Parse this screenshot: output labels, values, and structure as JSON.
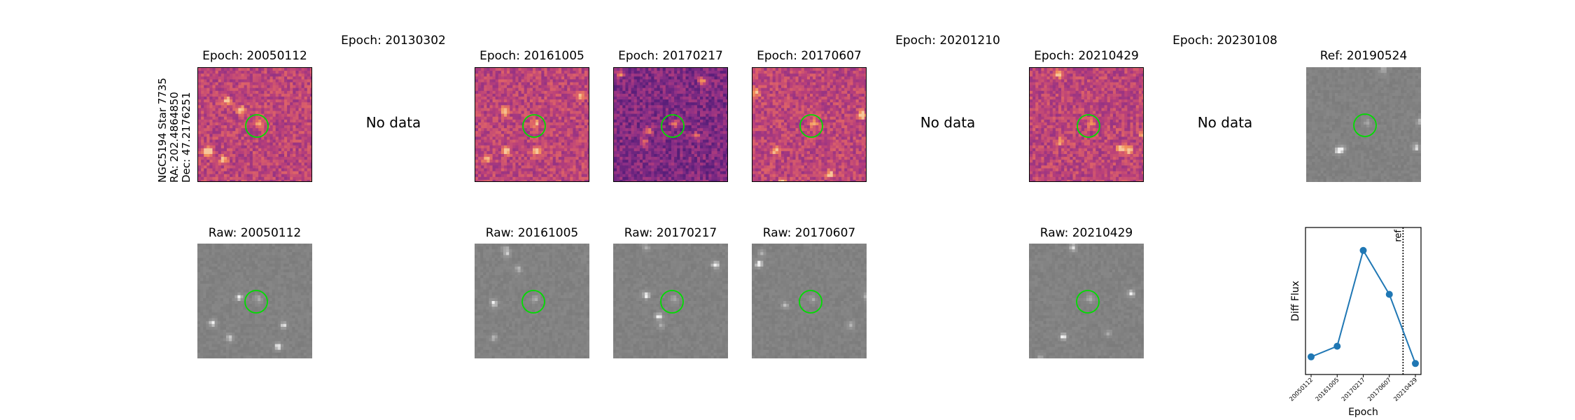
{
  "star_label": {
    "line1": "NGC5194 Star 7735",
    "line2": "RA: 202.4864850",
    "line3": "Dec: 47.2176251"
  },
  "top_row": [
    {
      "title": "Epoch: 20050112",
      "has_data": true,
      "style": "diff",
      "no_data_text": ""
    },
    {
      "title": "Epoch: 20130302",
      "has_data": false,
      "style": "none",
      "no_data_text": "No data"
    },
    {
      "title": "Epoch: 20161005",
      "has_data": true,
      "style": "diff",
      "no_data_text": ""
    },
    {
      "title": "Epoch: 20170217",
      "has_data": true,
      "style": "diff-dark",
      "no_data_text": ""
    },
    {
      "title": "Epoch: 20170607",
      "has_data": true,
      "style": "diff",
      "no_data_text": ""
    },
    {
      "title": "Epoch: 20201210",
      "has_data": false,
      "style": "none",
      "no_data_text": "No data"
    },
    {
      "title": "Epoch: 20210429",
      "has_data": true,
      "style": "diff",
      "no_data_text": ""
    },
    {
      "title": "Epoch: 20230108",
      "has_data": false,
      "style": "none",
      "no_data_text": "No data"
    },
    {
      "title": "Ref: 20190524",
      "has_data": true,
      "style": "raw",
      "no_data_text": ""
    }
  ],
  "bottom_row": [
    {
      "title": "Raw: 20050112",
      "has_data": true
    },
    {
      "title": "",
      "has_data": false
    },
    {
      "title": "Raw: 20161005",
      "has_data": true
    },
    {
      "title": "Raw: 20170217",
      "has_data": true
    },
    {
      "title": "Raw: 20170607",
      "has_data": true
    },
    {
      "title": "",
      "has_data": false
    },
    {
      "title": "Raw: 20210429",
      "has_data": true
    },
    {
      "title": "",
      "has_data": false
    }
  ],
  "colors": {
    "marker_circle": "#00dd00",
    "series_line": "#1f77b4",
    "diff_cmap": [
      "#2a0f52",
      "#5a1f7a",
      "#8c2f86",
      "#b9407a",
      "#dd6268",
      "#f2925a",
      "#f7c79a"
    ],
    "raw_cmap": [
      "#6e6e6e",
      "#7c7c7c",
      "#8a8a8a",
      "#9a9a9a",
      "#bdbdbd",
      "#f2f2f2"
    ]
  },
  "chart_data": {
    "type": "line",
    "title": "",
    "xlabel": "Epoch",
    "ylabel": "Diff Flux",
    "categories": [
      "20050112",
      "20161005",
      "20170217",
      "20170607",
      "20210429"
    ],
    "values": [
      0.08,
      0.16,
      0.88,
      0.55,
      0.03
    ],
    "ylim": [
      0,
      1
    ],
    "ref_marker": {
      "label": "ref",
      "position_between": [
        "20170607",
        "20210429"
      ]
    },
    "grid": false,
    "legend": "none"
  }
}
